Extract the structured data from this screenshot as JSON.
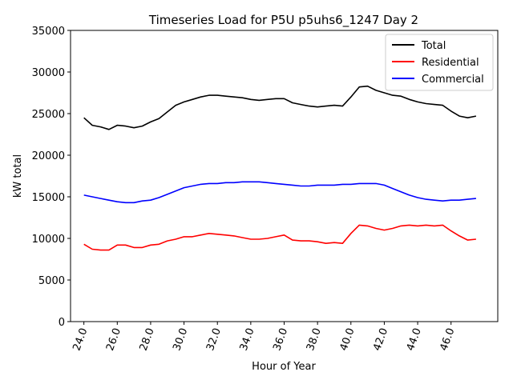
{
  "chart_data": {
    "type": "line",
    "title": "Timeseries Load for P5U p5uhs6_1247  Day 2",
    "xlabel": "Hour of Year",
    "ylabel": "kW total",
    "xlim": [
      23.2,
      48.8
    ],
    "ylim": [
      0,
      35000
    ],
    "x_ticks": [
      24,
      26,
      28,
      30,
      32,
      34,
      36,
      38,
      40,
      42,
      44,
      46
    ],
    "x_tick_labels": [
      "24.0",
      "26.0",
      "28.0",
      "30.0",
      "32.0",
      "34.0",
      "36.0",
      "38.0",
      "40.0",
      "42.0",
      "44.0",
      "46.0"
    ],
    "y_ticks": [
      0,
      5000,
      10000,
      15000,
      20000,
      25000,
      30000,
      35000
    ],
    "y_tick_labels": [
      "0",
      "5000",
      "10000",
      "15000",
      "20000",
      "25000",
      "30000",
      "35000"
    ],
    "legend_position": "top-right",
    "grid": false,
    "series": [
      {
        "name": "Total",
        "color": "#000000",
        "x": [
          24,
          24.5,
          25,
          25.5,
          26,
          26.5,
          27,
          27.5,
          28,
          28.5,
          29,
          29.5,
          30,
          30.5,
          31,
          31.5,
          32,
          32.5,
          33,
          33.5,
          34,
          34.5,
          35,
          35.5,
          36,
          36.5,
          37,
          37.5,
          38,
          38.5,
          39,
          39.5,
          40,
          40.5,
          41,
          41.5,
          42,
          42.5,
          43,
          43.5,
          44,
          44.5,
          45,
          45.5,
          46,
          46.5,
          47,
          47.5
        ],
        "values": [
          24500,
          23600,
          23400,
          23100,
          23600,
          23500,
          23300,
          23500,
          24000,
          24400,
          25200,
          26000,
          26400,
          26700,
          27000,
          27200,
          27200,
          27100,
          27000,
          26900,
          26700,
          26600,
          26700,
          26800,
          26800,
          26300,
          26100,
          25900,
          25800,
          25900,
          26000,
          25900,
          27000,
          28200,
          28300,
          27800,
          27500,
          27200,
          27100,
          26700,
          26400,
          26200,
          26100,
          26000,
          25300,
          24700,
          24500,
          24700
        ]
      },
      {
        "name": "Residential",
        "color": "#ff0000",
        "x": [
          24,
          24.5,
          25,
          25.5,
          26,
          26.5,
          27,
          27.5,
          28,
          28.5,
          29,
          29.5,
          30,
          30.5,
          31,
          31.5,
          32,
          32.5,
          33,
          33.5,
          34,
          34.5,
          35,
          35.5,
          36,
          36.5,
          37,
          37.5,
          38,
          38.5,
          39,
          39.5,
          40,
          40.5,
          41,
          41.5,
          42,
          42.5,
          43,
          43.5,
          44,
          44.5,
          45,
          45.5,
          46,
          46.5,
          47,
          47.5
        ],
        "values": [
          9300,
          8700,
          8600,
          8600,
          9200,
          9200,
          8900,
          8900,
          9200,
          9300,
          9700,
          9900,
          10200,
          10200,
          10400,
          10600,
          10500,
          10400,
          10300,
          10100,
          9900,
          9900,
          10000,
          10200,
          10400,
          9800,
          9700,
          9700,
          9600,
          9400,
          9500,
          9400,
          10600,
          11600,
          11500,
          11200,
          11000,
          11200,
          11500,
          11600,
          11500,
          11600,
          11500,
          11600,
          10900,
          10300,
          9800,
          9900
        ]
      },
      {
        "name": "Commercial",
        "color": "#0000ff",
        "x": [
          24,
          24.5,
          25,
          25.5,
          26,
          26.5,
          27,
          27.5,
          28,
          28.5,
          29,
          29.5,
          30,
          30.5,
          31,
          31.5,
          32,
          32.5,
          33,
          33.5,
          34,
          34.5,
          35,
          35.5,
          36,
          36.5,
          37,
          37.5,
          38,
          38.5,
          39,
          39.5,
          40,
          40.5,
          41,
          41.5,
          42,
          42.5,
          43,
          43.5,
          44,
          44.5,
          45,
          45.5,
          46,
          46.5,
          47,
          47.5
        ],
        "values": [
          15200,
          15000,
          14800,
          14600,
          14400,
          14300,
          14300,
          14500,
          14600,
          14900,
          15300,
          15700,
          16100,
          16300,
          16500,
          16600,
          16600,
          16700,
          16700,
          16800,
          16800,
          16800,
          16700,
          16600,
          16500,
          16400,
          16300,
          16300,
          16400,
          16400,
          16400,
          16500,
          16500,
          16600,
          16600,
          16600,
          16400,
          16000,
          15600,
          15200,
          14900,
          14700,
          14600,
          14500,
          14600,
          14600,
          14700,
          14800
        ]
      }
    ]
  }
}
